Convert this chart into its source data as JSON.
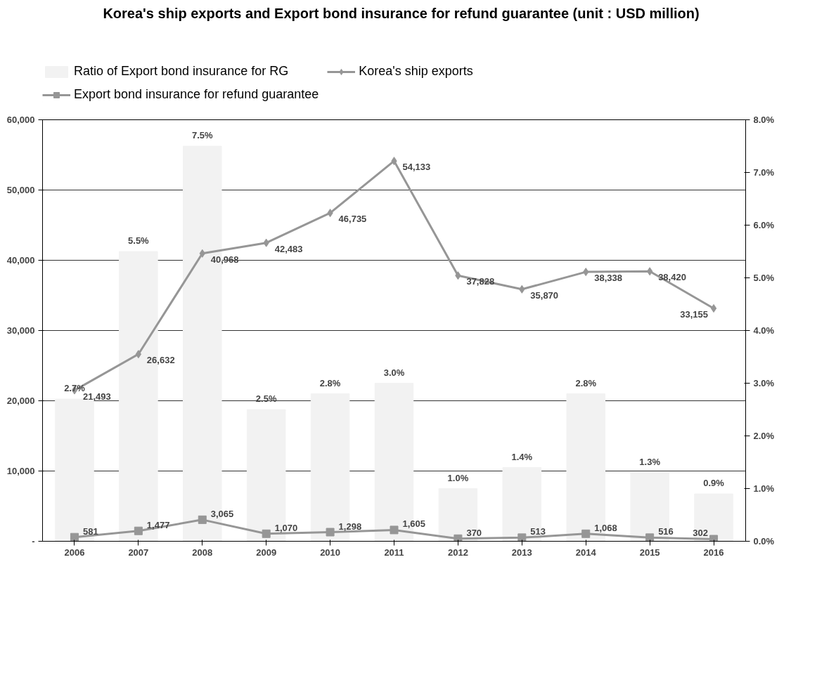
{
  "chart_data": {
    "type": "bar",
    "title": "Korea's ship exports and Export bond insurance for refund guarantee (unit : USD million)",
    "categories": [
      "2006",
      "2007",
      "2008",
      "2009",
      "2010",
      "2011",
      "2012",
      "2013",
      "2014",
      "2015",
      "2016"
    ],
    "series": [
      {
        "name": "Ratio of Export bond insurance for RG",
        "axis": "y2",
        "color": "#f2f2f2",
        "values": [
          2.7,
          5.5,
          7.5,
          2.5,
          2.8,
          3.0,
          1.0,
          1.4,
          2.8,
          1.3,
          0.9
        ],
        "value_labels": [
          "2.7%",
          "5.5%",
          "7.5%",
          "2.5%",
          "2.8%",
          "3.0%",
          "1.0%",
          "1.4%",
          "2.8%",
          "1.3%",
          "0.9%"
        ]
      },
      {
        "name": "Korea's ship exports",
        "type": "line",
        "marker": "diamond",
        "color": "#969696",
        "values": [
          21493,
          26632,
          40968,
          42483,
          46735,
          54133,
          37828,
          35870,
          38338,
          38420,
          33155
        ],
        "value_labels": [
          "21,493",
          "26,632",
          "40,968",
          "42,483",
          "46,735",
          "54,133",
          "37,828",
          "35,870",
          "38,338",
          "38,420",
          "33,155"
        ]
      },
      {
        "name": "Export bond insurance for refund guarantee",
        "type": "line",
        "marker": "square",
        "color": "#969696",
        "values": [
          581,
          1477,
          3065,
          1070,
          1298,
          1605,
          370,
          513,
          1068,
          516,
          302
        ],
        "value_labels": [
          "581",
          "1,477",
          "3,065",
          "1,070",
          "1,298",
          "1,605",
          "370",
          "513",
          "1,068",
          "516",
          "302"
        ]
      }
    ],
    "ylim": [
      0,
      60000
    ],
    "yticks": [
      {
        "value": 0,
        "label": "-"
      },
      {
        "value": 10000,
        "label": "10,000"
      },
      {
        "value": 20000,
        "label": "20,000"
      },
      {
        "value": 30000,
        "label": "30,000"
      },
      {
        "value": 40000,
        "label": "40,000"
      },
      {
        "value": 50000,
        "label": "50,000"
      },
      {
        "value": 60000,
        "label": "60,000"
      }
    ],
    "y2lim": [
      0,
      8
    ],
    "y2ticks": [
      {
        "value": 0,
        "label": "0.0%"
      },
      {
        "value": 1,
        "label": "1.0%"
      },
      {
        "value": 2,
        "label": "2.0%"
      },
      {
        "value": 3,
        "label": "3.0%"
      },
      {
        "value": 4,
        "label": "4.0%"
      },
      {
        "value": 5,
        "label": "5.0%"
      },
      {
        "value": 6,
        "label": "6.0%"
      },
      {
        "value": 7,
        "label": "7.0%"
      },
      {
        "value": 8,
        "label": "8.0%"
      }
    ],
    "grid": "y",
    "legend": "top",
    "line_style": "solid"
  }
}
